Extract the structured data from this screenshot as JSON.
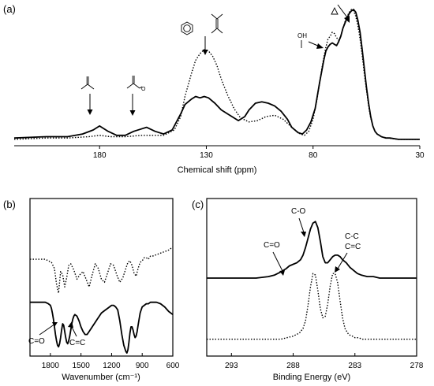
{
  "chart_data": [
    {
      "panel": "(a)",
      "type": "line",
      "xlabel": "Chemical shift (ppm)",
      "xlim": [
        220,
        30
      ],
      "x_reversed": true,
      "xticks": [
        180,
        130,
        80,
        30
      ],
      "annotations": [
        {
          "label": "ketone",
          "x": 180,
          "icon": "ketone-structure-icon"
        },
        {
          "label": "ester",
          "x": 158,
          "icon": "ester-structure-icon"
        },
        {
          "label": "aromatic",
          "x": 130,
          "icon": "benzene-structure-icon"
        },
        {
          "label": "alkene",
          "x": 130,
          "icon": "alkene-structure-icon"
        },
        {
          "label": "OH",
          "x": 71,
          "text": "OH"
        },
        {
          "label": "epoxide",
          "x": 62,
          "icon": "epoxide-structure-icon"
        }
      ],
      "series": [
        {
          "style": "solid",
          "x": [
            220,
            205,
            195,
            188,
            183,
            180,
            176,
            172,
            168,
            164,
            160,
            158,
            154,
            150,
            146,
            142,
            140,
            137,
            135,
            133,
            131,
            129,
            126,
            123,
            120,
            118,
            115,
            112,
            110,
            107,
            104,
            101,
            98,
            95,
            92,
            90,
            87,
            85,
            83,
            81,
            79,
            77,
            75,
            74,
            73,
            72,
            71,
            70,
            69,
            68,
            67,
            66,
            65,
            64,
            63,
            62,
            61,
            60,
            59,
            58,
            57,
            56,
            55,
            54,
            53,
            52,
            51,
            50,
            49,
            48,
            46,
            44,
            40,
            35,
            30
          ],
          "y": [
            0.04,
            0.05,
            0.05,
            0.07,
            0.1,
            0.13,
            0.09,
            0.06,
            0.06,
            0.09,
            0.11,
            0.12,
            0.09,
            0.07,
            0.1,
            0.22,
            0.29,
            0.33,
            0.35,
            0.34,
            0.35,
            0.34,
            0.3,
            0.25,
            0.22,
            0.2,
            0.17,
            0.2,
            0.25,
            0.3,
            0.31,
            0.3,
            0.28,
            0.24,
            0.18,
            0.12,
            0.08,
            0.07,
            0.1,
            0.16,
            0.26,
            0.45,
            0.62,
            0.69,
            0.72,
            0.74,
            0.75,
            0.74,
            0.73,
            0.76,
            0.8,
            0.86,
            0.9,
            0.94,
            0.97,
            0.99,
            1.0,
            0.98,
            0.92,
            0.83,
            0.7,
            0.56,
            0.42,
            0.3,
            0.2,
            0.13,
            0.09,
            0.07,
            0.06,
            0.05,
            0.04,
            0.04,
            0.03,
            0.03,
            0.03
          ]
        },
        {
          "style": "dotted",
          "x": [
            220,
            205,
            195,
            185,
            180,
            175,
            168,
            160,
            155,
            150,
            145,
            142,
            140,
            137,
            135,
            133,
            131,
            129,
            127,
            125,
            123,
            120,
            117,
            114,
            110,
            106,
            102,
            98,
            94,
            90,
            86,
            84,
            82,
            80,
            78,
            76,
            75,
            74,
            73,
            72,
            71,
            70,
            69,
            68,
            67,
            66,
            65,
            64,
            63,
            62,
            61,
            60,
            59,
            58,
            57,
            56,
            55,
            54,
            53,
            52,
            51,
            50,
            48,
            45,
            40,
            35,
            30
          ],
          "y": [
            0.03,
            0.04,
            0.04,
            0.05,
            0.06,
            0.05,
            0.05,
            0.06,
            0.06,
            0.06,
            0.1,
            0.2,
            0.35,
            0.52,
            0.62,
            0.67,
            0.7,
            0.69,
            0.65,
            0.58,
            0.48,
            0.36,
            0.26,
            0.19,
            0.16,
            0.17,
            0.2,
            0.21,
            0.18,
            0.12,
            0.07,
            0.06,
            0.09,
            0.18,
            0.34,
            0.55,
            0.64,
            0.72,
            0.78,
            0.8,
            0.83,
            0.82,
            0.79,
            0.77,
            0.8,
            0.86,
            0.91,
            0.95,
            0.98,
            1.0,
            0.99,
            0.95,
            0.88,
            0.78,
            0.66,
            0.52,
            0.4,
            0.28,
            0.19,
            0.13,
            0.09,
            0.07,
            0.05,
            0.04,
            0.03,
            0.03,
            0.03
          ]
        }
      ]
    },
    {
      "panel": "(b)",
      "type": "line",
      "xlabel": "Wavenumber (cm⁻¹)",
      "xlim": [
        2000,
        600
      ],
      "x_reversed": true,
      "xticks": [
        1800,
        1500,
        1200,
        900,
        600
      ],
      "annotations": [
        {
          "label": "C=O",
          "x": 1720
        },
        {
          "label": "C=C",
          "x": 1590
        }
      ],
      "series": [
        {
          "style": "dotted",
          "x": [
            2000,
            1960,
            1920,
            1880,
            1850,
            1820,
            1790,
            1760,
            1740,
            1720,
            1700,
            1680,
            1660,
            1640,
            1620,
            1600,
            1570,
            1540,
            1510,
            1480,
            1450,
            1420,
            1390,
            1360,
            1330,
            1300,
            1270,
            1240,
            1210,
            1180,
            1150,
            1120,
            1090,
            1060,
            1040,
            1020,
            1000,
            980,
            960,
            940,
            920,
            900,
            880,
            860,
            840,
            820,
            800,
            760,
            720,
            680,
            640,
            600
          ],
          "y": [
            0.62,
            0.62,
            0.62,
            0.62,
            0.62,
            0.61,
            0.6,
            0.56,
            0.46,
            0.4,
            0.54,
            0.52,
            0.44,
            0.5,
            0.58,
            0.59,
            0.55,
            0.49,
            0.52,
            0.54,
            0.49,
            0.44,
            0.52,
            0.59,
            0.56,
            0.49,
            0.47,
            0.53,
            0.59,
            0.58,
            0.52,
            0.47,
            0.5,
            0.56,
            0.6,
            0.61,
            0.58,
            0.53,
            0.51,
            0.56,
            0.6,
            0.61,
            0.63,
            0.63,
            0.62,
            0.64,
            0.64,
            0.65,
            0.66,
            0.67,
            0.68,
            0.7
          ]
        },
        {
          "style": "solid",
          "x": [
            2000,
            1960,
            1920,
            1880,
            1850,
            1820,
            1800,
            1790,
            1780,
            1770,
            1760,
            1750,
            1740,
            1730,
            1720,
            1710,
            1700,
            1690,
            1680,
            1670,
            1660,
            1650,
            1640,
            1630,
            1620,
            1610,
            1600,
            1590,
            1580,
            1570,
            1560,
            1540,
            1520,
            1500,
            1480,
            1460,
            1440,
            1420,
            1400,
            1380,
            1360,
            1340,
            1320,
            1300,
            1280,
            1260,
            1240,
            1220,
            1200,
            1180,
            1160,
            1140,
            1120,
            1100,
            1080,
            1060,
            1050,
            1040,
            1030,
            1020,
            1010,
            1000,
            990,
            980,
            970,
            960,
            950,
            940,
            930,
            920,
            910,
            900,
            880,
            860,
            840,
            820,
            800,
            760,
            720,
            680,
            640,
            600
          ],
          "y": [
            0.34,
            0.34,
            0.34,
            0.34,
            0.34,
            0.33,
            0.32,
            0.3,
            0.27,
            0.23,
            0.18,
            0.13,
            0.09,
            0.06,
            0.05,
            0.07,
            0.11,
            0.16,
            0.2,
            0.19,
            0.15,
            0.11,
            0.08,
            0.07,
            0.09,
            0.12,
            0.16,
            0.2,
            0.23,
            0.25,
            0.26,
            0.25,
            0.22,
            0.18,
            0.15,
            0.13,
            0.13,
            0.15,
            0.17,
            0.19,
            0.21,
            0.23,
            0.25,
            0.27,
            0.28,
            0.29,
            0.3,
            0.31,
            0.32,
            0.32,
            0.31,
            0.29,
            0.22,
            0.13,
            0.06,
            0.02,
            0.01,
            0.03,
            0.08,
            0.14,
            0.18,
            0.18,
            0.16,
            0.13,
            0.11,
            0.12,
            0.15,
            0.19,
            0.23,
            0.27,
            0.29,
            0.31,
            0.32,
            0.33,
            0.33,
            0.34,
            0.34,
            0.34,
            0.33,
            0.31,
            0.28,
            0.26
          ]
        }
      ]
    },
    {
      "panel": "(c)",
      "type": "line",
      "xlabel": "Binding Energy (eV)",
      "xlim": [
        295,
        278
      ],
      "x_reversed": true,
      "xticks": [
        293,
        288,
        283,
        278
      ],
      "annotations": [
        {
          "label": "C=O",
          "x": 288.5
        },
        {
          "label": "C-O",
          "x": 286.5
        },
        {
          "label": "C-C",
          "x": 284.6
        },
        {
          "label": "C=C",
          "x": 284.6
        }
      ],
      "series": [
        {
          "style": "solid",
          "x": [
            295,
            293,
            291,
            290,
            289.5,
            289,
            288.6,
            288.3,
            288,
            287.7,
            287.4,
            287.2,
            287,
            286.8,
            286.6,
            286.4,
            286.2,
            286,
            285.8,
            285.6,
            285.4,
            285.2,
            285,
            284.8,
            284.6,
            284.4,
            284.2,
            284,
            283.7,
            283.4,
            283.1,
            282.8,
            282.5,
            282,
            281.5,
            281,
            280,
            279,
            278
          ],
          "y": [
            0.5,
            0.5,
            0.5,
            0.51,
            0.52,
            0.54,
            0.56,
            0.58,
            0.59,
            0.6,
            0.62,
            0.65,
            0.7,
            0.76,
            0.82,
            0.86,
            0.87,
            0.83,
            0.74,
            0.64,
            0.6,
            0.6,
            0.62,
            0.64,
            0.65,
            0.65,
            0.64,
            0.62,
            0.6,
            0.57,
            0.55,
            0.53,
            0.52,
            0.51,
            0.51,
            0.5,
            0.5,
            0.5,
            0.5
          ]
        },
        {
          "style": "dotted",
          "x": [
            295,
            293,
            291,
            290,
            289.5,
            289,
            288.5,
            288,
            287.5,
            287.2,
            287,
            286.8,
            286.6,
            286.4,
            286.2,
            286,
            285.8,
            285.6,
            285.4,
            285.2,
            285,
            284.8,
            284.6,
            284.4,
            284.2,
            284,
            283.8,
            283.5,
            283.2,
            283,
            282.7,
            282.4,
            282,
            281.5,
            281,
            280,
            279,
            278
          ],
          "y": [
            0.1,
            0.1,
            0.1,
            0.1,
            0.1,
            0.1,
            0.11,
            0.12,
            0.14,
            0.17,
            0.22,
            0.32,
            0.44,
            0.53,
            0.52,
            0.42,
            0.3,
            0.24,
            0.25,
            0.33,
            0.45,
            0.53,
            0.53,
            0.47,
            0.35,
            0.24,
            0.17,
            0.13,
            0.12,
            0.11,
            0.11,
            0.1,
            0.1,
            0.1,
            0.1,
            0.1,
            0.1,
            0.1
          ]
        }
      ]
    }
  ]
}
